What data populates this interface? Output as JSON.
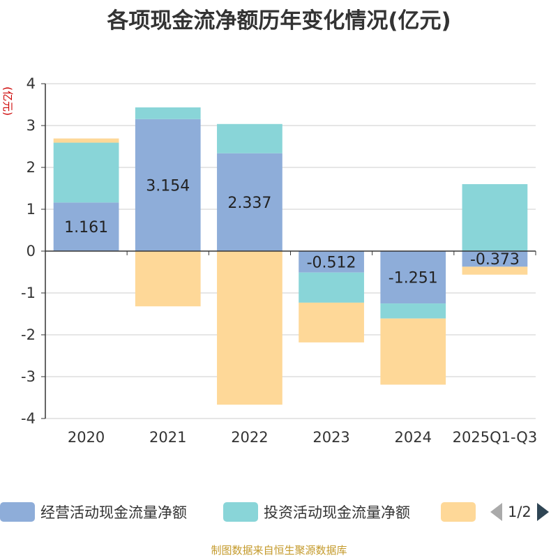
{
  "chart_data": {
    "type": "bar",
    "stacked": true,
    "title": "各项现金流净额历年变化情况(亿元)",
    "ylabel": "(亿元)",
    "ylim": [
      -4,
      4
    ],
    "yticks": [
      4,
      3,
      2,
      1,
      0,
      -1,
      -2,
      -3,
      -4
    ],
    "categories": [
      "2020",
      "2021",
      "2022",
      "2023",
      "2024",
      "2025Q1-Q3"
    ],
    "series": [
      {
        "name": "经营活动现金流量净额",
        "color": "#8eadd9",
        "values": [
          1.161,
          3.154,
          2.337,
          -0.512,
          -1.251,
          -0.373
        ],
        "show_labels": true
      },
      {
        "name": "投资活动现金流量净额",
        "color": "#89d5d8",
        "values": [
          1.43,
          0.28,
          0.7,
          -0.72,
          -0.36,
          1.6
        ],
        "show_labels": false
      },
      {
        "name": "",
        "color": "#fed898",
        "values": [
          0.1,
          -1.32,
          -3.67,
          -0.95,
          -1.58,
          -0.19
        ],
        "show_labels": false
      }
    ],
    "data_labels": [
      "1.161",
      "3.154",
      "2.337",
      "-0.512",
      "-1.251",
      "-0.373"
    ]
  },
  "legend": {
    "items": [
      "经营活动现金流量净额",
      "投资活动现金流量净额",
      ""
    ],
    "page": "1/2"
  },
  "footer": {
    "source": "制图数据来自恒生聚源数据库"
  },
  "colors": {
    "axis": "#333333",
    "grid": "#cccccc",
    "ylabel": "#cc0000",
    "source": "#c49a2b"
  }
}
